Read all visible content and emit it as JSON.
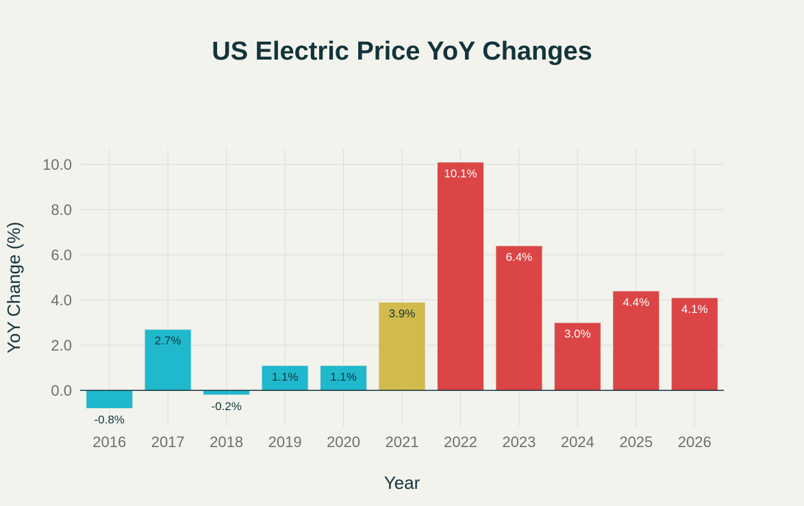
{
  "chart_data": {
    "type": "bar",
    "title": "US Electric Price YoY Changes",
    "xlabel": "Year",
    "ylabel": "YoY Change (%)",
    "categories": [
      "2016",
      "2017",
      "2018",
      "2019",
      "2020",
      "2021",
      "2022",
      "2023",
      "2024",
      "2025",
      "2026"
    ],
    "values": [
      -0.8,
      2.7,
      -0.2,
      1.1,
      1.1,
      3.9,
      10.1,
      6.4,
      3.0,
      4.4,
      4.1
    ],
    "data_labels": [
      "-0.8%",
      "2.7%",
      "-0.2%",
      "1.1%",
      "1.1%",
      "3.9%",
      "10.1%",
      "6.4%",
      "3.0%",
      "4.4%",
      "4.1%"
    ],
    "bar_colors": [
      "#1FB8CD",
      "#1FB8CD",
      "#1FB8CD",
      "#1FB8CD",
      "#1FB8CD",
      "#D2BA4C",
      "#DB4545",
      "#DB4545",
      "#DB4545",
      "#DB4545",
      "#DB4545"
    ],
    "label_colors": [
      "#13343B",
      "#13343B",
      "#13343B",
      "#13343B",
      "#13343B",
      "#13343B",
      "#FFFFFF",
      "#FFFFFF",
      "#FFFFFF",
      "#FFFFFF",
      "#FFFFFF"
    ],
    "yticks": [
      0,
      2,
      4,
      6,
      8,
      10
    ],
    "ytick_labels": [
      "0.0",
      "2.0",
      "4.0",
      "6.0",
      "8.0",
      "10.0"
    ],
    "ylim": [
      -1.6,
      10.7
    ],
    "grid": true,
    "legend": "none"
  }
}
